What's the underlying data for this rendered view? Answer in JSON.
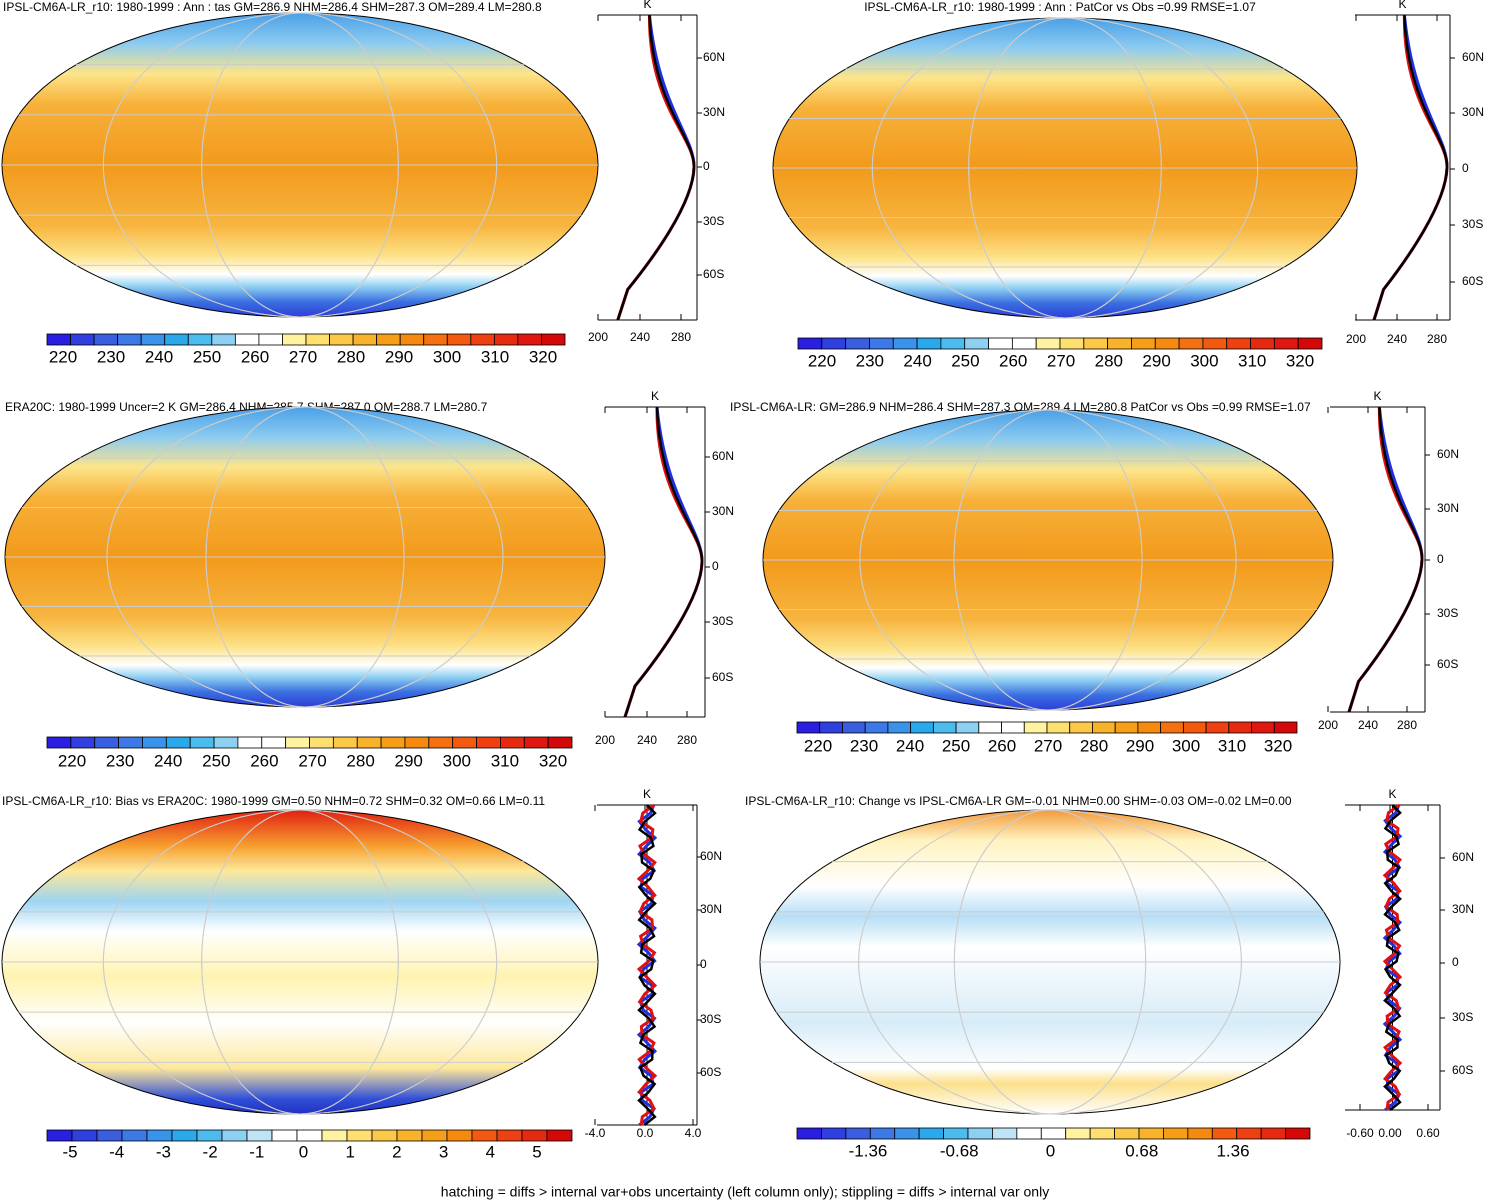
{
  "panels": [
    {
      "title": "IPSL-CM6A-LR_r10: 1980-1999 : Ann : tas GM=286.9 NHM=286.4 SHM=287.3 OM=289.4 LM=280.8",
      "colorbar": [
        "220",
        "230",
        "240",
        "250",
        "260",
        "270",
        "280",
        "290",
        "300",
        "310",
        "320"
      ],
      "profile": {
        "unit": "K",
        "xticks": [
          "200",
          "240",
          "280"
        ],
        "yticks": [
          "60N",
          "30N",
          "0",
          "30S",
          "60S"
        ]
      }
    },
    {
      "title": "IPSL-CM6A-LR_r10: 1980-1999 : Ann : PatCor vs Obs =0.99 RMSE=1.07",
      "colorbar": [
        "220",
        "230",
        "240",
        "250",
        "260",
        "270",
        "280",
        "290",
        "300",
        "310",
        "320"
      ],
      "profile": {
        "unit": "K",
        "xticks": [
          "200",
          "240",
          "280"
        ],
        "yticks": [
          "60N",
          "30N",
          "0",
          "30S",
          "60S"
        ]
      }
    },
    {
      "title": "ERA20C: 1980-1999 Uncer=2 K GM=286.4 NHM=285.7 SHM=287.0 OM=288.7 LM=280.7",
      "colorbar": [
        "220",
        "230",
        "240",
        "250",
        "260",
        "270",
        "280",
        "290",
        "300",
        "310",
        "320"
      ],
      "profile": {
        "unit": "K",
        "xticks": [
          "200",
          "240",
          "280"
        ],
        "yticks": [
          "60N",
          "30N",
          "0",
          "30S",
          "60S"
        ]
      }
    },
    {
      "title": "IPSL-CM6A-LR: GM=286.9 NHM=286.4 SHM=287.3 OM=289.4 LM=280.8 PatCor vs Obs =0.99 RMSE=1.07",
      "colorbar": [
        "220",
        "230",
        "240",
        "250",
        "260",
        "270",
        "280",
        "290",
        "300",
        "310",
        "320"
      ],
      "profile": {
        "unit": "K",
        "xticks": [
          "200",
          "240",
          "280"
        ],
        "yticks": [
          "60N",
          "30N",
          "0",
          "30S",
          "60S"
        ]
      }
    },
    {
      "title": "IPSL-CM6A-LR_r10: Bias vs ERA20C: 1980-1999 GM=0.50 NHM=0.72 SHM=0.32 OM=0.66 LM=0.11",
      "colorbar": [
        "-5",
        "-4",
        "-3",
        "-2",
        "-1",
        "0",
        "1",
        "2",
        "3",
        "4",
        "5"
      ],
      "profile": {
        "unit": "K",
        "xticks": [
          "-4.0",
          "0.0",
          "4.0"
        ],
        "yticks": [
          "60N",
          "30N",
          "0",
          "30S",
          "60S"
        ]
      }
    },
    {
      "title": "IPSL-CM6A-LR_r10: Change vs IPSL-CM6A-LR GM=-0.01 NHM=0.00 SHM=-0.03 OM=-0.02 LM=0.00",
      "colorbar": [
        "-1.36",
        "-0.68",
        "0",
        "0.68",
        "1.36"
      ],
      "profile": {
        "unit": "K",
        "xticks": [
          "-0.60",
          "0.00",
          "0.60"
        ],
        "yticks": [
          "60N",
          "30N",
          "0",
          "30S",
          "60S"
        ]
      }
    }
  ],
  "footer": "hatching = diffs > internal var+obs uncertainty (left column only); stippling = diffs > internal var only"
}
